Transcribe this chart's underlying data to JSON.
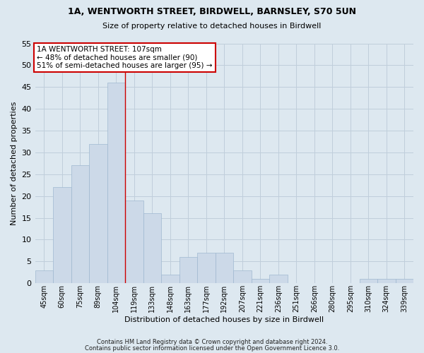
{
  "title1": "1A, WENTWORTH STREET, BIRDWELL, BARNSLEY, S70 5UN",
  "title2": "Size of property relative to detached houses in Birdwell",
  "xlabel": "Distribution of detached houses by size in Birdwell",
  "ylabel": "Number of detached properties",
  "bins": [
    "45sqm",
    "60sqm",
    "75sqm",
    "89sqm",
    "104sqm",
    "119sqm",
    "133sqm",
    "148sqm",
    "163sqm",
    "177sqm",
    "192sqm",
    "207sqm",
    "221sqm",
    "236sqm",
    "251sqm",
    "266sqm",
    "280sqm",
    "295sqm",
    "310sqm",
    "324sqm",
    "339sqm"
  ],
  "values": [
    3,
    22,
    27,
    32,
    46,
    19,
    16,
    2,
    6,
    7,
    7,
    3,
    1,
    2,
    0,
    0,
    0,
    0,
    1,
    1,
    1
  ],
  "bar_color": "#ccd9e8",
  "bar_edge_color": "#9fb8d0",
  "grid_color": "#c0cedb",
  "bg_color": "#dde8f0",
  "plot_bg_color": "#dde8f0",
  "red_line_x": 4.5,
  "annotation_text": "1A WENTWORTH STREET: 107sqm\n← 48% of detached houses are smaller (90)\n51% of semi-detached houses are larger (95) →",
  "annotation_box_color": "#ffffff",
  "annotation_border_color": "#cc0000",
  "ylim": [
    0,
    55
  ],
  "yticks": [
    0,
    5,
    10,
    15,
    20,
    25,
    30,
    35,
    40,
    45,
    50,
    55
  ],
  "footer1": "Contains HM Land Registry data © Crown copyright and database right 2024.",
  "footer2": "Contains public sector information licensed under the Open Government Licence 3.0."
}
